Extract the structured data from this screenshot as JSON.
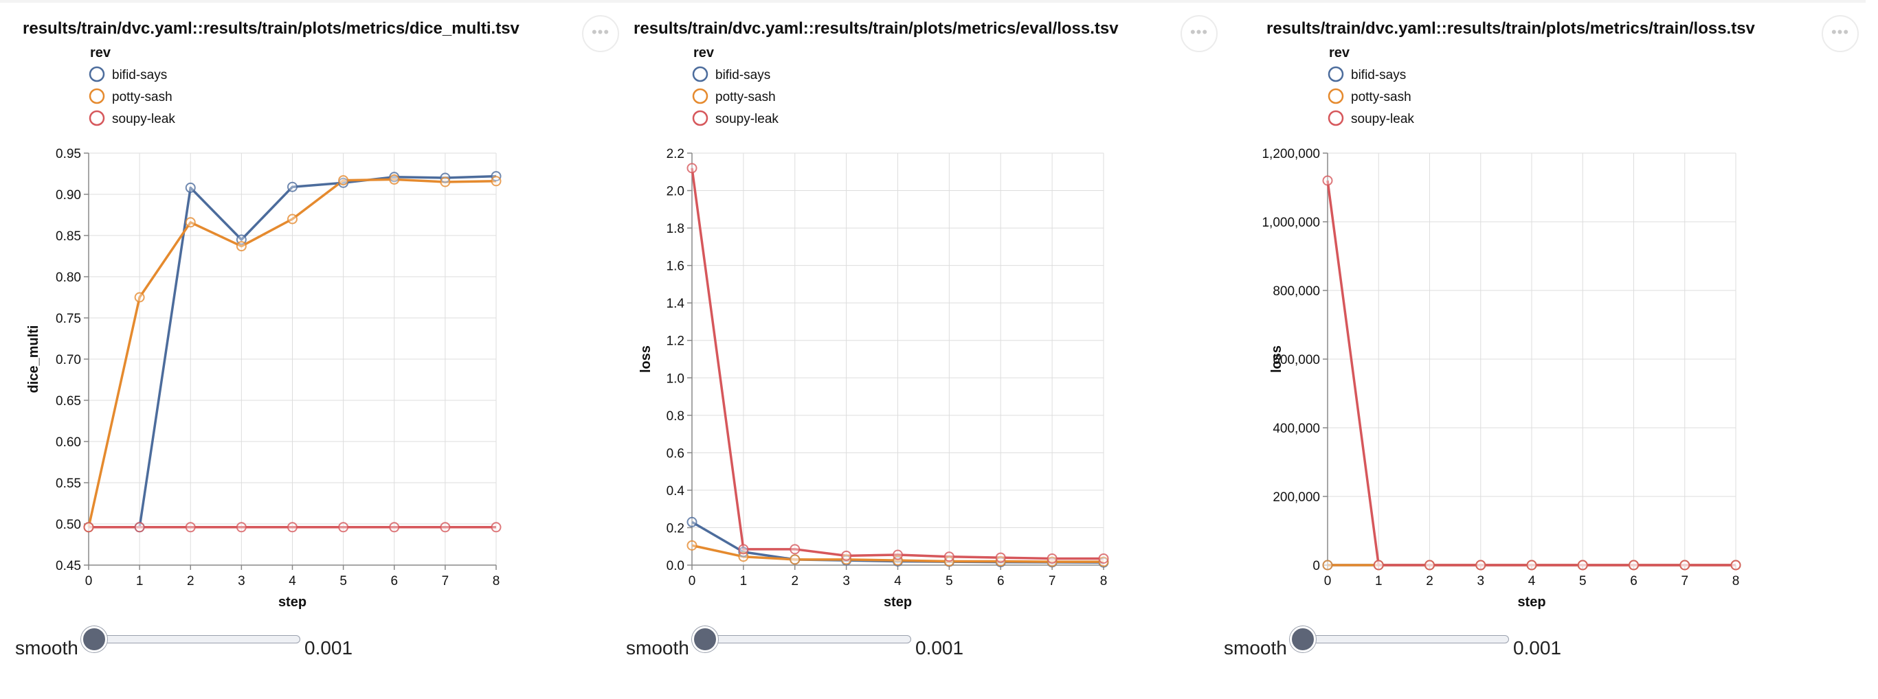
{
  "menu_label": "•••",
  "panels": [
    {
      "title": "results/train/dvc.yaml::results/train/plots/metrics/dice_multi.tsv",
      "smooth": {
        "label": "smooth",
        "value": "0.001",
        "fraction": 0.0
      }
    },
    {
      "title": "results/train/dvc.yaml::results/train/plots/metrics/eval/loss.tsv",
      "smooth": {
        "label": "smooth",
        "value": "0.001",
        "fraction": 0.0
      }
    },
    {
      "title": "results/train/dvc.yaml::results/train/plots/metrics/train/loss.tsv",
      "smooth": {
        "label": "smooth",
        "value": "0.001",
        "fraction": 0.0
      }
    }
  ],
  "chart_data": [
    {
      "type": "line",
      "title": "results/train/dvc.yaml::results/train/plots/metrics/dice_multi.tsv",
      "xlabel": "step",
      "ylabel": "dice_multi",
      "legend_title": "rev",
      "legend_position": "top-left",
      "grid": true,
      "x": [
        0,
        1,
        2,
        3,
        4,
        5,
        6,
        7,
        8
      ],
      "xlim": [
        0,
        8
      ],
      "ylim": [
        0.45,
        0.95
      ],
      "yticks": [
        "0.45",
        "0.50",
        "0.55",
        "0.60",
        "0.65",
        "0.70",
        "0.75",
        "0.80",
        "0.85",
        "0.90",
        "0.95"
      ],
      "xticks": [
        "0",
        "1",
        "2",
        "3",
        "4",
        "5",
        "6",
        "7",
        "8"
      ],
      "series": [
        {
          "name": "bifid-says",
          "color": "#4c6c9c",
          "values": [
            0.496,
            0.496,
            0.908,
            0.845,
            0.909,
            0.914,
            0.921,
            0.92,
            0.922
          ]
        },
        {
          "name": "potty-sash",
          "color": "#e58a2e",
          "values": [
            0.496,
            0.775,
            0.866,
            0.837,
            0.87,
            0.917,
            0.918,
            0.915,
            0.916
          ]
        },
        {
          "name": "soupy-leak",
          "color": "#d6575b",
          "values": [
            0.496,
            0.496,
            0.496,
            0.496,
            0.496,
            0.496,
            0.496,
            0.496,
            0.496
          ]
        }
      ]
    },
    {
      "type": "line",
      "title": "results/train/dvc.yaml::results/train/plots/metrics/eval/loss.tsv",
      "xlabel": "step",
      "ylabel": "loss",
      "legend_title": "rev",
      "legend_position": "top-left",
      "grid": true,
      "x": [
        0,
        1,
        2,
        3,
        4,
        5,
        6,
        7,
        8
      ],
      "xlim": [
        0,
        8
      ],
      "ylim": [
        0,
        2.2
      ],
      "yticks": [
        "0.0",
        "0.2",
        "0.4",
        "0.6",
        "0.8",
        "1.0",
        "1.2",
        "1.4",
        "1.6",
        "1.8",
        "2.0",
        "2.2"
      ],
      "xticks": [
        "0",
        "1",
        "2",
        "3",
        "4",
        "5",
        "6",
        "7",
        "8"
      ],
      "series": [
        {
          "name": "bifid-says",
          "color": "#4c6c9c",
          "values": [
            0.23,
            0.07,
            0.03,
            0.025,
            0.02,
            0.018,
            0.016,
            0.015,
            0.014
          ]
        },
        {
          "name": "potty-sash",
          "color": "#e58a2e",
          "values": [
            0.105,
            0.045,
            0.03,
            0.03,
            0.025,
            0.02,
            0.02,
            0.018,
            0.018
          ]
        },
        {
          "name": "soupy-leak",
          "color": "#d6575b",
          "values": [
            2.12,
            0.085,
            0.085,
            0.05,
            0.055,
            0.045,
            0.04,
            0.035,
            0.035
          ]
        }
      ]
    },
    {
      "type": "line",
      "title": "results/train/dvc.yaml::results/train/plots/metrics/train/loss.tsv",
      "xlabel": "step",
      "ylabel": "loss",
      "legend_title": "rev",
      "legend_position": "top-left",
      "grid": true,
      "x": [
        0,
        1,
        2,
        3,
        4,
        5,
        6,
        7,
        8
      ],
      "xlim": [
        0,
        8
      ],
      "ylim": [
        0,
        1200000
      ],
      "yticks": [
        "0",
        "200,000",
        "400,000",
        "600,000",
        "800,000",
        "1,000,000",
        "1,200,000"
      ],
      "xticks": [
        "0",
        "1",
        "2",
        "3",
        "4",
        "5",
        "6",
        "7",
        "8"
      ],
      "series": [
        {
          "name": "bifid-says",
          "color": "#4c6c9c",
          "values": [
            0,
            0,
            0,
            0,
            0,
            0,
            0,
            0,
            0
          ]
        },
        {
          "name": "potty-sash",
          "color": "#e58a2e",
          "values": [
            0,
            0,
            0,
            0,
            0,
            0,
            0,
            0,
            0
          ]
        },
        {
          "name": "soupy-leak",
          "color": "#d6575b",
          "values": [
            1120000,
            0,
            0,
            0,
            0,
            0,
            0,
            0,
            0
          ]
        }
      ]
    }
  ]
}
